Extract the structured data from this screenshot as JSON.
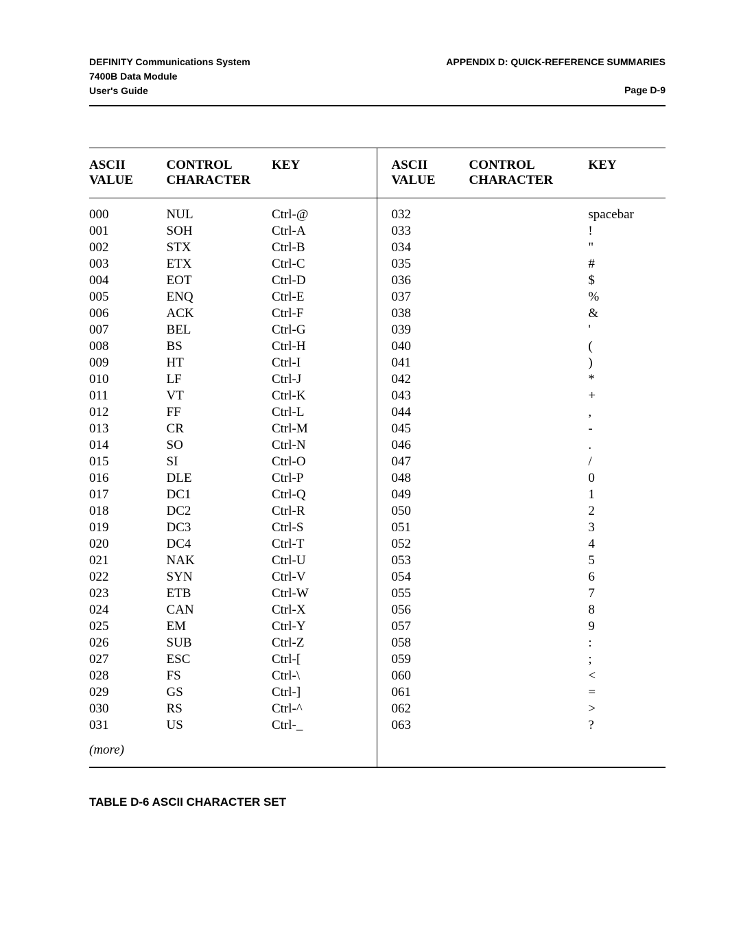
{
  "header": {
    "left_lines": [
      "DEFINITY Communications System",
      "7400B Data Module",
      "User's Guide"
    ],
    "right_title": "APPENDIX D: QUICK-REFERENCE SUMMARIES",
    "page_label": "Page  D-9"
  },
  "table": {
    "columns": [
      "ASCII VALUE",
      "CONTROL CHARACTER",
      "KEY",
      "ASCII VALUE",
      "CONTROL CHARACTER",
      "KEY"
    ],
    "rows": [
      [
        "000",
        "NUL",
        "Ctrl-@",
        "032",
        "",
        "spacebar"
      ],
      [
        "001",
        "SOH",
        "Ctrl-A",
        "033",
        "",
        "!"
      ],
      [
        "002",
        "STX",
        "Ctrl-B",
        "034",
        "",
        "\""
      ],
      [
        "003",
        "ETX",
        "Ctrl-C",
        "035",
        "",
        "#"
      ],
      [
        "004",
        "EOT",
        "Ctrl-D",
        "036",
        "",
        "$"
      ],
      [
        "005",
        "ENQ",
        "Ctrl-E",
        "037",
        "",
        "%"
      ],
      [
        "006",
        "ACK",
        "Ctrl-F",
        "038",
        "",
        "&"
      ],
      [
        "007",
        "BEL",
        "Ctrl-G",
        "039",
        "",
        "'"
      ],
      [
        "008",
        "BS",
        "Ctrl-H",
        "040",
        "",
        "("
      ],
      [
        "009",
        "HT",
        "Ctrl-I",
        "041",
        "",
        ")"
      ],
      [
        "010",
        "LF",
        "Ctrl-J",
        "042",
        "",
        "*"
      ],
      [
        "011",
        "VT",
        "Ctrl-K",
        "043",
        "",
        "+"
      ],
      [
        "012",
        "FF",
        "Ctrl-L",
        "044",
        "",
        ","
      ],
      [
        "013",
        "CR",
        "Ctrl-M",
        "045",
        "",
        "-"
      ],
      [
        "014",
        "SO",
        "Ctrl-N",
        "046",
        "",
        "."
      ],
      [
        "015",
        "SI",
        "Ctrl-O",
        "047",
        "",
        "/"
      ],
      [
        "016",
        "DLE",
        "Ctrl-P",
        "048",
        "",
        "0"
      ],
      [
        "017",
        "DC1",
        "Ctrl-Q",
        "049",
        "",
        "1"
      ],
      [
        "018",
        "DC2",
        "Ctrl-R",
        "050",
        "",
        "2"
      ],
      [
        "019",
        "DC3",
        "Ctrl-S",
        "051",
        "",
        "3"
      ],
      [
        "020",
        "DC4",
        "Ctrl-T",
        "052",
        "",
        "4"
      ],
      [
        "021",
        "NAK",
        "Ctrl-U",
        "053",
        "",
        "5"
      ],
      [
        "022",
        "SYN",
        "Ctrl-V",
        "054",
        "",
        "6"
      ],
      [
        "023",
        "ETB",
        "Ctrl-W",
        "055",
        "",
        "7"
      ],
      [
        "024",
        "CAN",
        "Ctrl-X",
        "056",
        "",
        "8"
      ],
      [
        "025",
        "EM",
        "Ctrl-Y",
        "057",
        "",
        "9"
      ],
      [
        "026",
        "SUB",
        "Ctrl-Z",
        "058",
        "",
        ":"
      ],
      [
        "027",
        "ESC",
        "Ctrl-[",
        "059",
        "",
        ";"
      ],
      [
        "028",
        "FS",
        "Ctrl-\\",
        "060",
        "",
        "<"
      ],
      [
        "029",
        "GS",
        "Ctrl-]",
        "061",
        "",
        "="
      ],
      [
        "030",
        "RS",
        "Ctrl-^",
        "062",
        "",
        ">"
      ],
      [
        "031",
        "US",
        "Ctrl-_",
        "063",
        "",
        "?"
      ]
    ],
    "more_label": "(more)"
  },
  "caption": "TABLE D-6 ASCII CHARACTER SET"
}
